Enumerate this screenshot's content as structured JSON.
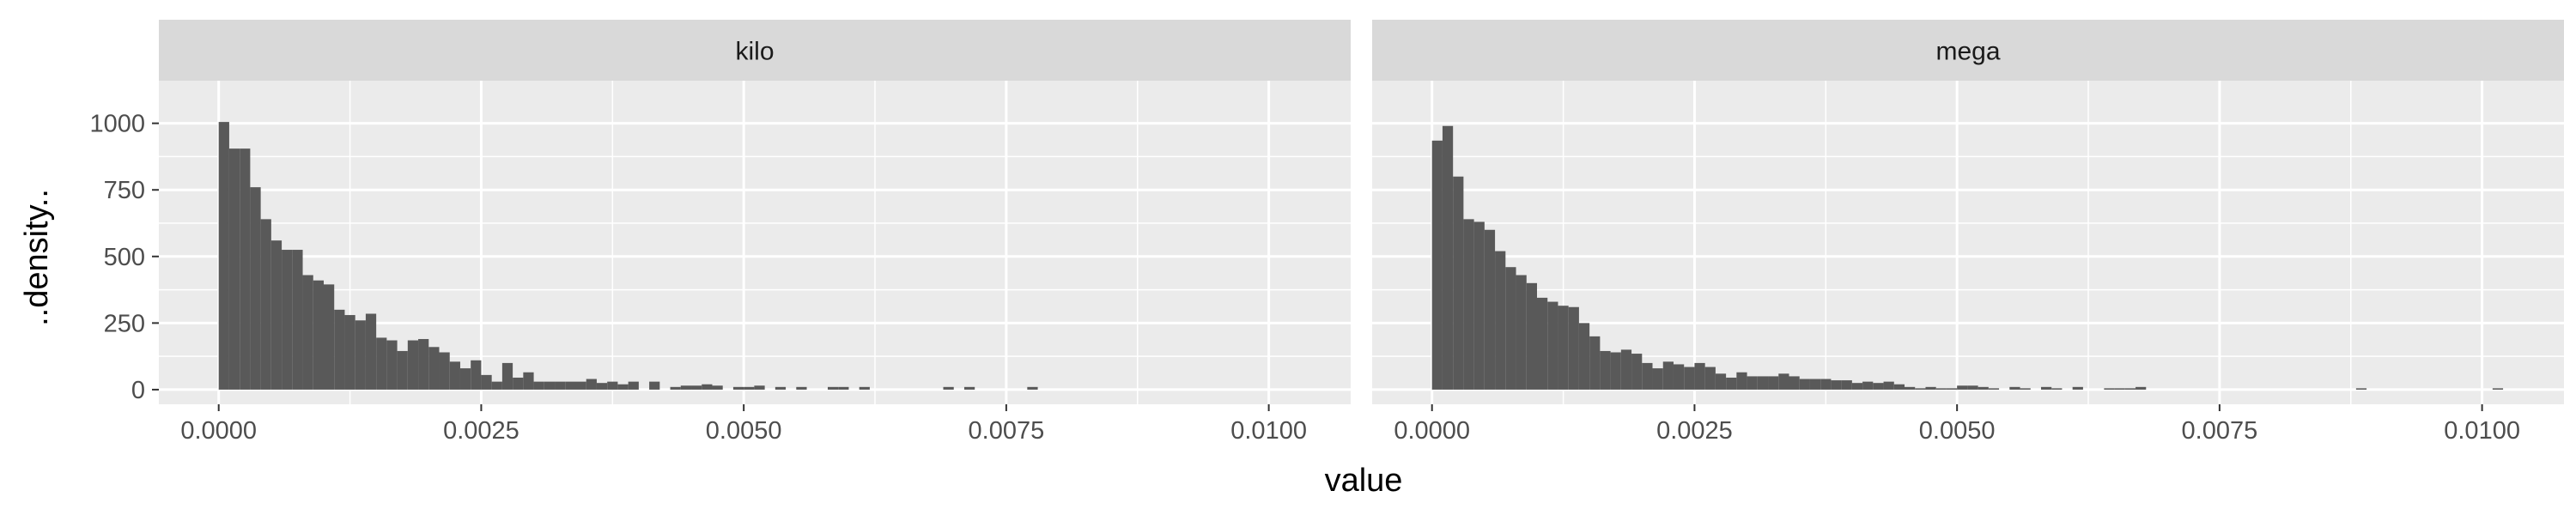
{
  "chart_data": {
    "type": "histogram",
    "xlabel": "value",
    "ylabel": "..density..",
    "xlim": [
      -0.00057,
      0.01078
    ],
    "ylim": [
      -55,
      1160
    ],
    "x_ticks": [
      0,
      0.0025,
      0.005,
      0.0075,
      0.01
    ],
    "x_tick_labels": [
      "0.0000",
      "0.0025",
      "0.0050",
      "0.0075",
      "0.0100"
    ],
    "y_ticks": [
      0,
      250,
      500,
      750,
      1000
    ],
    "y_tick_labels": [
      "0",
      "250",
      "500",
      "750",
      "1000"
    ],
    "grid": true,
    "legend": "none",
    "bin_width": 0.0001,
    "bar_color": "#595959",
    "panel_background": "#ebebeb",
    "strip_background": "#d9d9d9",
    "panels": [
      {
        "strip": "kilo",
        "bin_start": 0,
        "densities": [
          1005,
          905,
          905,
          760,
          640,
          560,
          525,
          525,
          430,
          410,
          395,
          300,
          280,
          260,
          285,
          195,
          185,
          145,
          185,
          190,
          160,
          140,
          105,
          80,
          110,
          55,
          30,
          100,
          45,
          65,
          30,
          30,
          30,
          30,
          30,
          40,
          25,
          30,
          20,
          30,
          0,
          30,
          0,
          10,
          15,
          15,
          20,
          15,
          0,
          10,
          10,
          15,
          0,
          10,
          0,
          10,
          0,
          0,
          10,
          10,
          0,
          10,
          0,
          0,
          0,
          0,
          0,
          0,
          0,
          10,
          0,
          10,
          0,
          0,
          0,
          0,
          0,
          10
        ]
      },
      {
        "strip": "mega",
        "bin_start": 0,
        "densities": [
          935,
          990,
          800,
          640,
          630,
          600,
          520,
          460,
          430,
          400,
          345,
          330,
          315,
          310,
          250,
          200,
          145,
          140,
          150,
          135,
          100,
          80,
          105,
          95,
          85,
          100,
          85,
          60,
          45,
          65,
          50,
          50,
          50,
          60,
          50,
          40,
          40,
          40,
          35,
          35,
          25,
          30,
          25,
          30,
          20,
          10,
          5,
          10,
          5,
          5,
          15,
          15,
          10,
          5,
          0,
          10,
          5,
          0,
          10,
          5,
          0,
          10,
          0,
          0,
          5,
          5,
          5,
          10,
          0,
          0,
          0,
          0,
          0,
          0,
          0,
          0,
          0,
          0,
          0,
          0,
          0,
          0,
          0,
          0,
          0,
          0,
          0,
          0,
          5,
          0,
          0,
          0,
          0,
          0,
          0,
          0,
          0,
          0,
          0,
          0,
          0,
          5
        ]
      }
    ]
  }
}
